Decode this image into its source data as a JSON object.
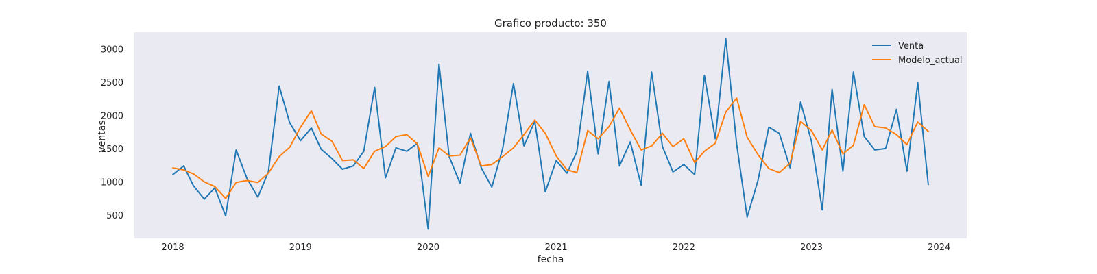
{
  "chart_data": {
    "type": "line",
    "title": "Grafico producto: 350",
    "xlabel": "fecha",
    "ylabel": "ventas",
    "x_tick_labels": [
      "2018",
      "2019",
      "2020",
      "2021",
      "2022",
      "2023",
      "2024"
    ],
    "x_ticks": [
      "2018-01-01",
      "2019-01-01",
      "2020-01-01",
      "2021-01-01",
      "2022-01-01",
      "2023-01-01",
      "2024-01-01"
    ],
    "y_ticks": [
      500,
      1000,
      1500,
      2000,
      2500,
      3000
    ],
    "ylim": [
      150,
      3250
    ],
    "xlim": [
      "2017-09-13",
      "2024-03-20"
    ],
    "grid": false,
    "legend_placement": "upper-right",
    "background": "#eaeaf2",
    "x": [
      "2018-01-01",
      "2018-02-01",
      "2018-03-01",
      "2018-04-01",
      "2018-05-01",
      "2018-06-01",
      "2018-07-01",
      "2018-08-01",
      "2018-09-01",
      "2018-10-01",
      "2018-11-01",
      "2018-12-01",
      "2019-01-01",
      "2019-02-01",
      "2019-03-01",
      "2019-04-01",
      "2019-05-01",
      "2019-06-01",
      "2019-07-01",
      "2019-08-01",
      "2019-09-01",
      "2019-10-01",
      "2019-11-01",
      "2019-12-01",
      "2020-01-01",
      "2020-02-01",
      "2020-03-01",
      "2020-04-01",
      "2020-05-01",
      "2020-06-01",
      "2020-07-01",
      "2020-08-01",
      "2020-09-01",
      "2020-10-01",
      "2020-11-01",
      "2020-12-01",
      "2021-01-01",
      "2021-02-01",
      "2021-03-01",
      "2021-04-01",
      "2021-05-01",
      "2021-06-01",
      "2021-07-01",
      "2021-08-01",
      "2021-09-01",
      "2021-10-01",
      "2021-11-01",
      "2021-12-01",
      "2022-01-01",
      "2022-02-01",
      "2022-03-01",
      "2022-04-01",
      "2022-05-01",
      "2022-06-01",
      "2022-07-01",
      "2022-08-01",
      "2022-09-01",
      "2022-10-01",
      "2022-11-01",
      "2022-12-01",
      "2023-01-01",
      "2023-02-01",
      "2023-03-01",
      "2023-04-01",
      "2023-05-01",
      "2023-06-01",
      "2023-07-01",
      "2023-08-01",
      "2023-09-01",
      "2023-10-01",
      "2023-11-01",
      "2023-12-01"
    ],
    "series": [
      {
        "name": "Venta",
        "color": "#1f77b4",
        "values": [
          1110,
          1240,
          940,
          740,
          910,
          490,
          1480,
          1050,
          770,
          1150,
          2440,
          1890,
          1620,
          1810,
          1490,
          1350,
          1190,
          1240,
          1460,
          2420,
          1060,
          1510,
          1460,
          1580,
          290,
          2770,
          1380,
          980,
          1730,
          1210,
          920,
          1500,
          2480,
          1540,
          1910,
          850,
          1320,
          1130,
          1450,
          2660,
          1420,
          2510,
          1240,
          1600,
          950,
          2650,
          1530,
          1150,
          1260,
          1110,
          2600,
          1650,
          3150,
          1570,
          470,
          1020,
          1820,
          1730,
          1210,
          2200,
          1610,
          580,
          2390,
          1160,
          2650,
          1680,
          1480,
          1500,
          2090,
          1160,
          2490,
          960
        ]
      },
      {
        "name": "Modelo_actual",
        "color": "#ff7f0e",
        "values": [
          1210,
          1180,
          1120,
          1000,
          930,
          750,
          990,
          1020,
          990,
          1130,
          1380,
          1520,
          1820,
          2070,
          1720,
          1610,
          1320,
          1330,
          1200,
          1460,
          1530,
          1680,
          1710,
          1570,
          1080,
          1510,
          1390,
          1400,
          1660,
          1240,
          1260,
          1380,
          1510,
          1710,
          1930,
          1730,
          1390,
          1180,
          1140,
          1770,
          1650,
          1830,
          2110,
          1780,
          1480,
          1540,
          1730,
          1530,
          1650,
          1290,
          1460,
          1580,
          2050,
          2260,
          1670,
          1410,
          1200,
          1140,
          1280,
          1910,
          1770,
          1480,
          1780,
          1420,
          1550,
          2160,
          1830,
          1810,
          1710,
          1560,
          1900,
          1760
        ]
      }
    ]
  }
}
